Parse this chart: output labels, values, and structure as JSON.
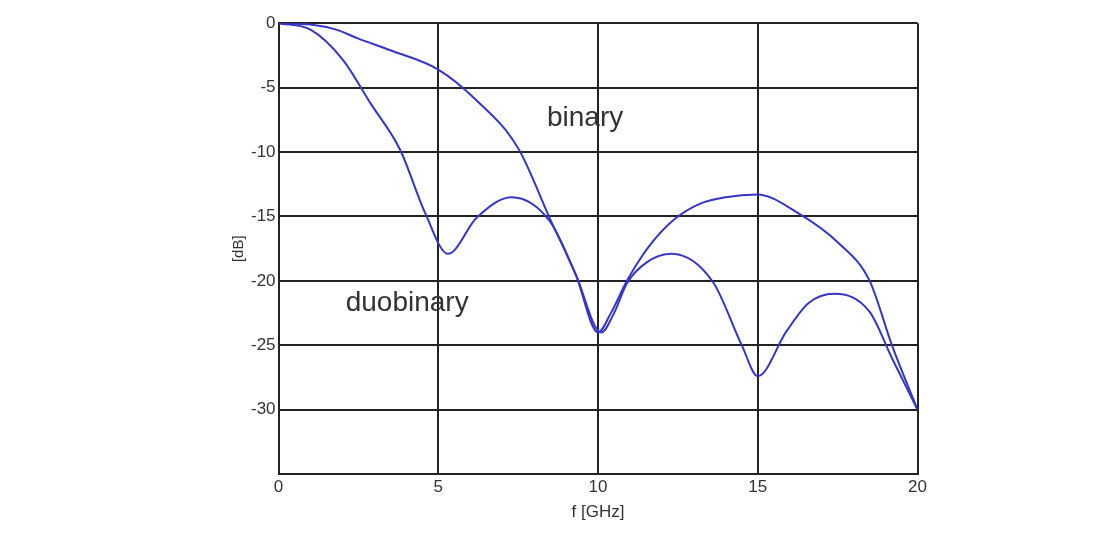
{
  "chart_data": {
    "type": "line",
    "xlabel": "f [GHz]",
    "ylabel": "[dB]",
    "xlim": [
      0,
      20
    ],
    "ylim": [
      -35,
      0
    ],
    "xticks": [
      0,
      5,
      10,
      15,
      20
    ],
    "yticks": [
      -30,
      -25,
      -20,
      -15,
      -10,
      -5,
      0
    ],
    "grid": true,
    "legend": false,
    "marker": "none",
    "line_style": "solid",
    "series": [
      {
        "name": "binary",
        "color": "#3535c8",
        "x": [
          0,
          1,
          1.8,
          2.5,
          3.5,
          5,
          6.2,
          7.5,
          8.5,
          9.3,
          10,
          10.4,
          10.9,
          11.6,
          12.4,
          13.2,
          14,
          15,
          16.3,
          17.5,
          18.5,
          19.2,
          20
        ],
        "values": [
          0,
          -0.1,
          -0.5,
          -1.2,
          -2.1,
          -3.6,
          -6,
          -9.7,
          -15.2,
          -19.5,
          -24,
          -22.5,
          -20,
          -17.3,
          -15.2,
          -14,
          -13.5,
          -13.3,
          -14.8,
          -17,
          -20,
          -25,
          -30
        ]
      },
      {
        "name": "duobinary",
        "color": "#3535c8",
        "x": [
          0,
          1,
          2,
          2.9,
          3.8,
          4.6,
          5.3,
          6.2,
          7.3,
          8.5,
          9.3,
          10.1,
          10.5,
          10.9,
          11.5,
          12.3,
          13.6,
          14.5,
          15,
          15.9,
          16.6,
          17.4,
          18.5,
          19.2,
          20
        ],
        "values": [
          0,
          -0.5,
          -2.8,
          -6.3,
          -9.8,
          -14.8,
          -17.9,
          -15.1,
          -13.5,
          -15.4,
          -19.5,
          -24,
          -22.5,
          -20.2,
          -18.6,
          -17.9,
          -20.1,
          -25,
          -27.4,
          -23.9,
          -21.7,
          -21,
          -22.4,
          -26,
          -30
        ]
      }
    ]
  }
}
